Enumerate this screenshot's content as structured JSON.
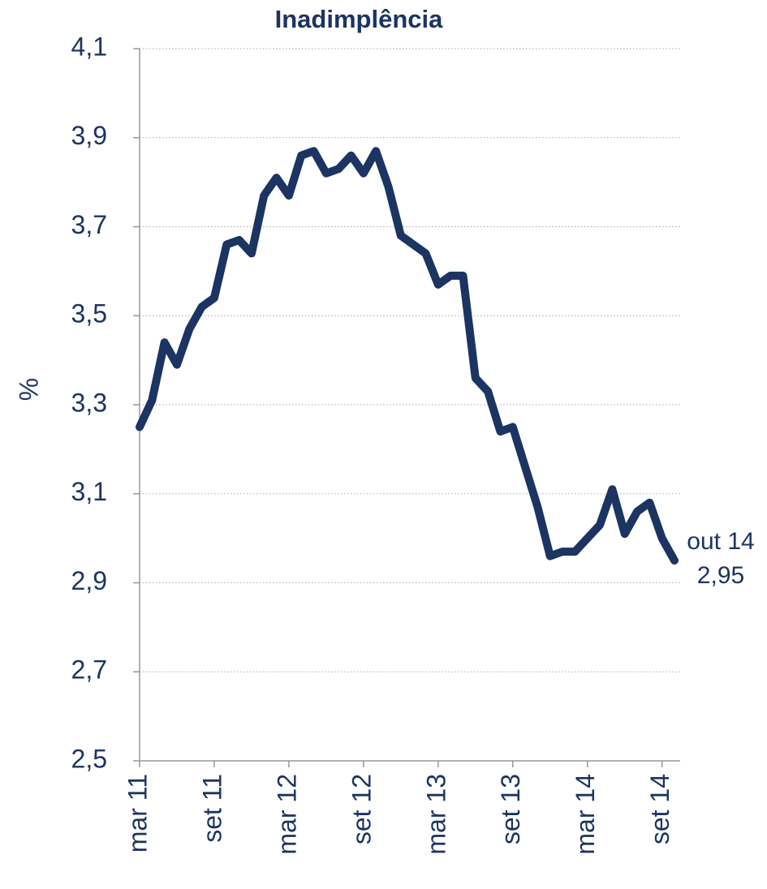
{
  "chart_data": {
    "type": "line",
    "title": "Inadimplência",
    "ylabel": "%",
    "categories": [
      "mar 11",
      null,
      null,
      null,
      null,
      null,
      "set 11",
      null,
      null,
      null,
      null,
      null,
      "mar 12",
      null,
      null,
      null,
      null,
      null,
      "set 12",
      null,
      null,
      null,
      null,
      null,
      "mar 13",
      null,
      null,
      null,
      null,
      null,
      "set 13",
      null,
      null,
      null,
      null,
      null,
      "mar 14",
      null,
      null,
      null,
      null,
      null,
      "set 14",
      null
    ],
    "values": [
      3.25,
      3.31,
      3.44,
      3.39,
      3.47,
      3.52,
      3.54,
      3.66,
      3.67,
      3.64,
      3.77,
      3.81,
      3.77,
      3.86,
      3.87,
      3.82,
      3.83,
      3.86,
      3.82,
      3.87,
      3.79,
      3.68,
      3.66,
      3.64,
      3.57,
      3.59,
      3.59,
      3.36,
      3.33,
      3.24,
      3.25,
      3.16,
      3.07,
      2.96,
      2.97,
      2.97,
      3.0,
      3.03,
      3.11,
      3.01,
      3.06,
      3.08,
      3.0,
      2.95
    ],
    "color": "#1c3462",
    "ylim": [
      2.5,
      4.1
    ],
    "yticks": [
      {
        "value": 2.5,
        "label": "2,5"
      },
      {
        "value": 2.7,
        "label": "2,7"
      },
      {
        "value": 2.9,
        "label": "2,9"
      },
      {
        "value": 3.1,
        "label": "3,1"
      },
      {
        "value": 3.3,
        "label": "3,3"
      },
      {
        "value": 3.5,
        "label": "3,5"
      },
      {
        "value": 3.7,
        "label": "3,7"
      },
      {
        "value": 3.9,
        "label": "3,9"
      },
      {
        "value": 4.1,
        "label": "4,1"
      }
    ],
    "grid": true,
    "annotation": [
      "out 14",
      "2,95"
    ]
  }
}
